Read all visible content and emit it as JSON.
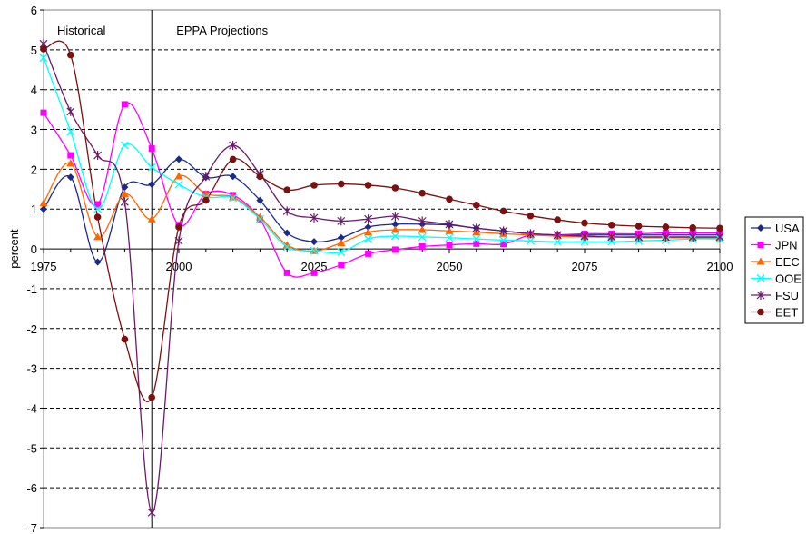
{
  "chart_data": {
    "type": "line",
    "title": "",
    "xlabel": "",
    "ylabel": "percent",
    "xlim": [
      1975,
      2100
    ],
    "ylim": [
      -7,
      6
    ],
    "x_ticks": [
      1975,
      2000,
      2025,
      2050,
      2075,
      2100
    ],
    "y_ticks": [
      -7,
      -6,
      -5,
      -4,
      -3,
      -2,
      -1,
      0,
      1,
      2,
      3,
      4,
      5,
      6
    ],
    "grid": "horizontal-dashed",
    "legend_position": "right",
    "annotations": [
      {
        "text": "Historical",
        "x": 1982
      },
      {
        "text": "EPPA Projections",
        "x": 2008
      }
    ],
    "divider_x": 1995,
    "x": [
      1975,
      1980,
      1985,
      1990,
      1995,
      2000,
      2005,
      2010,
      2015,
      2020,
      2025,
      2030,
      2035,
      2040,
      2045,
      2050,
      2055,
      2060,
      2065,
      2070,
      2075,
      2080,
      2085,
      2090,
      2095,
      2100
    ],
    "series": [
      {
        "name": "USA",
        "color": "#1a2a8c",
        "marker": "diamond",
        "values": [
          1.0,
          1.8,
          -0.33,
          1.55,
          1.62,
          2.25,
          1.8,
          1.82,
          1.22,
          0.4,
          0.18,
          0.28,
          0.55,
          0.62,
          0.62,
          0.6,
          0.52,
          0.45,
          0.38,
          0.35,
          0.35,
          0.35,
          0.35,
          0.35,
          0.35,
          0.35
        ]
      },
      {
        "name": "JPN",
        "color": "#ff00ff",
        "marker": "square",
        "values": [
          3.42,
          2.35,
          1.12,
          3.63,
          2.52,
          0.6,
          1.38,
          1.35,
          0.75,
          -0.6,
          -0.6,
          -0.4,
          -0.12,
          -0.02,
          0.06,
          0.1,
          0.13,
          0.12,
          0.35,
          0.35,
          0.38,
          0.38,
          0.38,
          0.4,
          0.4,
          0.4
        ]
      },
      {
        "name": "EEC",
        "color": "#ff6600",
        "marker": "triangle",
        "values": [
          1.15,
          2.15,
          0.3,
          1.38,
          0.75,
          1.83,
          1.38,
          1.3,
          0.8,
          0.1,
          -0.05,
          0.15,
          0.42,
          0.48,
          0.48,
          0.45,
          0.42,
          0.38,
          0.35,
          0.32,
          0.3,
          0.3,
          0.28,
          0.28,
          0.28,
          0.28
        ]
      },
      {
        "name": "OOE",
        "color": "#00ffff",
        "marker": "x",
        "values": [
          4.8,
          2.95,
          1.0,
          2.6,
          2.05,
          1.62,
          1.3,
          1.28,
          0.75,
          0.05,
          -0.05,
          -0.08,
          0.25,
          0.32,
          0.3,
          0.28,
          0.25,
          0.22,
          0.2,
          0.18,
          0.18,
          0.18,
          0.2,
          0.22,
          0.25,
          0.25
        ]
      },
      {
        "name": "FSU",
        "color": "#6b1a6b",
        "marker": "asterisk",
        "values": [
          5.15,
          3.45,
          2.35,
          1.18,
          -6.62,
          0.2,
          1.82,
          2.6,
          1.88,
          0.95,
          0.78,
          0.7,
          0.75,
          0.82,
          0.7,
          0.62,
          0.52,
          0.45,
          0.38,
          0.35,
          0.32,
          0.3,
          0.3,
          0.3,
          0.3,
          0.3
        ]
      },
      {
        "name": "EET",
        "color": "#7a1010",
        "marker": "circle",
        "values": [
          5.02,
          4.87,
          0.8,
          -2.27,
          -3.73,
          0.55,
          1.22,
          2.25,
          1.82,
          1.48,
          1.6,
          1.63,
          1.6,
          1.53,
          1.4,
          1.25,
          1.1,
          0.95,
          0.83,
          0.73,
          0.65,
          0.6,
          0.57,
          0.55,
          0.53,
          0.52
        ]
      }
    ]
  }
}
